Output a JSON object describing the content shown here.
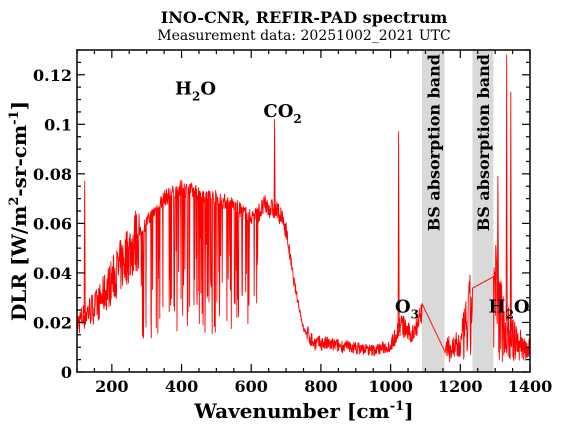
{
  "chart_data": {
    "type": "line",
    "title": "INO-CNR, REFIR-PAD spectrum",
    "subtitle": "Measurement data: 20251002_2021 UTC",
    "xlabel": "Wavenumber [cm",
    "xlabel_sup": "-1",
    "xlabel_end": "]",
    "ylabel": "DLR [W/m",
    "ylabel_sup1": "2",
    "ylabel_mid": "-sr-cm",
    "ylabel_sup2": "-1",
    "ylabel_end": "]",
    "xlim": [
      100,
      1400
    ],
    "ylim": [
      0,
      0.13
    ],
    "xticks": [
      200,
      400,
      600,
      800,
      1000,
      1200,
      1400
    ],
    "xtick_labels": [
      "200",
      "400",
      "600",
      "800",
      "1000",
      "1200",
      "1400"
    ],
    "yticks": [
      0,
      0.02,
      0.04,
      0.06,
      0.08,
      0.1,
      0.12
    ],
    "ytick_labels": [
      "0",
      "0.02",
      "0.04",
      "0.06",
      "0.08",
      "0.1",
      "0.12"
    ],
    "line_color": "#ff0000",
    "band_color": "#d9d9d9",
    "bands": [
      {
        "x": [
          1090,
          1155
        ],
        "label": "BS absorption band"
      },
      {
        "x": [
          1235,
          1295
        ],
        "label": "BS absorption band"
      }
    ],
    "annotations": [
      {
        "main": "H",
        "sub": "2",
        "tail": "O",
        "x": 440,
        "y": 0.112
      },
      {
        "main": "CO",
        "sub": "2",
        "tail": "",
        "x": 690,
        "y": 0.103
      },
      {
        "main": "O",
        "sub": "3",
        "tail": "",
        "x": 1047,
        "y": 0.024
      },
      {
        "main": "H",
        "sub": "2",
        "tail": "O",
        "x": 1340,
        "y": 0.024
      }
    ],
    "series": [
      {
        "x": [
          100,
          130,
          160,
          200,
          250,
          300,
          350,
          400,
          450,
          500,
          550,
          600,
          640,
          680,
          700,
          720,
          750,
          780,
          800,
          850,
          900,
          950,
          1000,
          1030,
          1060,
          1090,
          1155,
          1200,
          1235,
          1295,
          1320,
          1350,
          1380,
          1400
        ],
        "y": [
          0.02,
          0.025,
          0.028,
          0.038,
          0.05,
          0.062,
          0.072,
          0.076,
          0.074,
          0.072,
          0.069,
          0.064,
          0.07,
          0.067,
          0.06,
          0.04,
          0.018,
          0.012,
          0.012,
          0.011,
          0.01,
          0.009,
          0.011,
          0.02,
          0.015,
          0.025,
          0.01,
          0.012,
          0.03,
          0.04,
          0.025,
          0.015,
          0.012,
          0.01
        ],
        "peaks": [
          {
            "x": 122,
            "y": 0.077
          },
          {
            "x": 667,
            "y": 0.102
          },
          {
            "x": 1023,
            "y": 0.097
          },
          {
            "x": 1308,
            "y": 0.079
          },
          {
            "x": 1333,
            "y": 0.128
          },
          {
            "x": 1345,
            "y": 0.113
          }
        ]
      }
    ]
  }
}
